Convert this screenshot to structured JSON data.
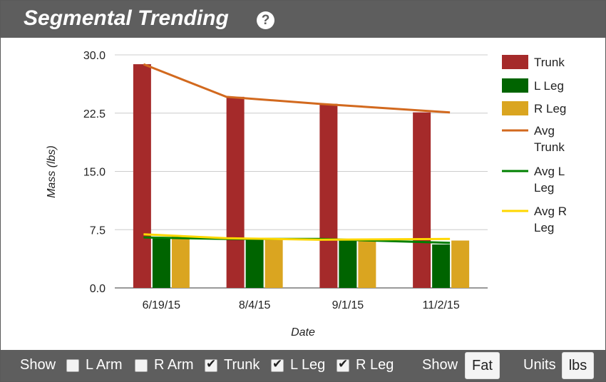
{
  "header": {
    "title": "Segmental Trending",
    "help_icon": "?"
  },
  "chart_data": {
    "type": "bar",
    "title": "",
    "xlabel": "Date",
    "ylabel": "Mass (lbs)",
    "ylim": [
      0,
      30
    ],
    "yticks": [
      "0.0",
      "7.5",
      "15.0",
      "22.5",
      "30.0"
    ],
    "categories": [
      "6/19/15",
      "8/4/15",
      "9/1/15",
      "11/2/15"
    ],
    "series": [
      {
        "name": "Trunk",
        "kind": "bar",
        "color": "#a52a2a",
        "values": [
          28.8,
          24.6,
          23.7,
          22.6
        ]
      },
      {
        "name": "L Leg",
        "kind": "bar",
        "color": "#006400",
        "values": [
          6.4,
          6.3,
          6.1,
          5.6
        ]
      },
      {
        "name": "R Leg",
        "kind": "bar",
        "color": "#daa520",
        "values": [
          6.6,
          6.2,
          6.2,
          6.1
        ]
      },
      {
        "name": "Avg Trunk",
        "kind": "line",
        "color": "#d2691e",
        "values": [
          28.8,
          24.6,
          23.7,
          22.6
        ]
      },
      {
        "name": "Avg L Leg",
        "kind": "line",
        "color": "#008000",
        "values": [
          6.5,
          6.3,
          6.3,
          5.8
        ]
      },
      {
        "name": "Avg R Leg",
        "kind": "line",
        "color": "#ffd700",
        "values": [
          6.9,
          6.4,
          6.2,
          6.3
        ]
      }
    ],
    "legend": {
      "position": "right",
      "labels": [
        [
          "Trunk"
        ],
        [
          "L Leg"
        ],
        [
          "R Leg"
        ],
        [
          "Avg",
          "Trunk"
        ],
        [
          "Avg L",
          "Leg"
        ],
        [
          "Avg R",
          "Leg"
        ]
      ]
    },
    "grid": true
  },
  "footer": {
    "show_label": "Show",
    "checkboxes": [
      {
        "label": "L Arm",
        "checked": false
      },
      {
        "label": "R Arm",
        "checked": false
      },
      {
        "label": "Trunk",
        "checked": true
      },
      {
        "label": "L Leg",
        "checked": true
      },
      {
        "label": "R Leg",
        "checked": true
      }
    ],
    "show2_label": "Show",
    "show_value": "Fat",
    "units_label": "Units",
    "units_value": "lbs"
  }
}
